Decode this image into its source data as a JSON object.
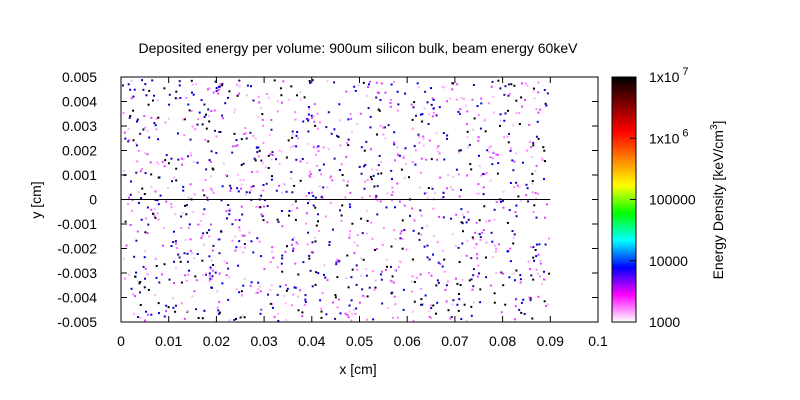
{
  "chart_data": {
    "type": "heatmap",
    "title": "Deposited energy per volume: 900um silicon bulk, beam energy 60keV",
    "xlabel": "x [cm]",
    "ylabel": "y [cm]",
    "xlim": [
      0,
      0.1
    ],
    "ylim": [
      -0.005,
      0.005
    ],
    "x_ticks": [
      "0",
      "0.01",
      "0.02",
      "0.03",
      "0.04",
      "0.05",
      "0.06",
      "0.07",
      "0.08",
      "0.09",
      "0.1"
    ],
    "y_ticks": [
      "-0.005",
      "-0.004",
      "-0.003",
      "-0.002",
      "-0.001",
      "0",
      "0.001",
      "0.002",
      "0.003",
      "0.004",
      "0.005"
    ],
    "data_extent_x": [
      0,
      0.09
    ],
    "baseline_y": 0,
    "colorbar": {
      "label": "Energy Density [keV/cm",
      "label_exponent": "3",
      "label_close": "]",
      "scale": "log",
      "range": [
        1000,
        10000000
      ],
      "tick_labels": [
        "1000",
        "10000",
        "100000",
        "1x10",
        "1x10"
      ],
      "tick_exponents": [
        "",
        "",
        "",
        "6",
        "7"
      ],
      "tick_values": [
        1000,
        10000,
        100000,
        1000000,
        10000000
      ],
      "palette": [
        "#ffffff",
        "#ff00ff",
        "#0000ff",
        "#00ffff",
        "#00ff00",
        "#ffff00",
        "#ff8000",
        "#ff0000",
        "#800000",
        "#000000"
      ]
    },
    "grid": false
  }
}
